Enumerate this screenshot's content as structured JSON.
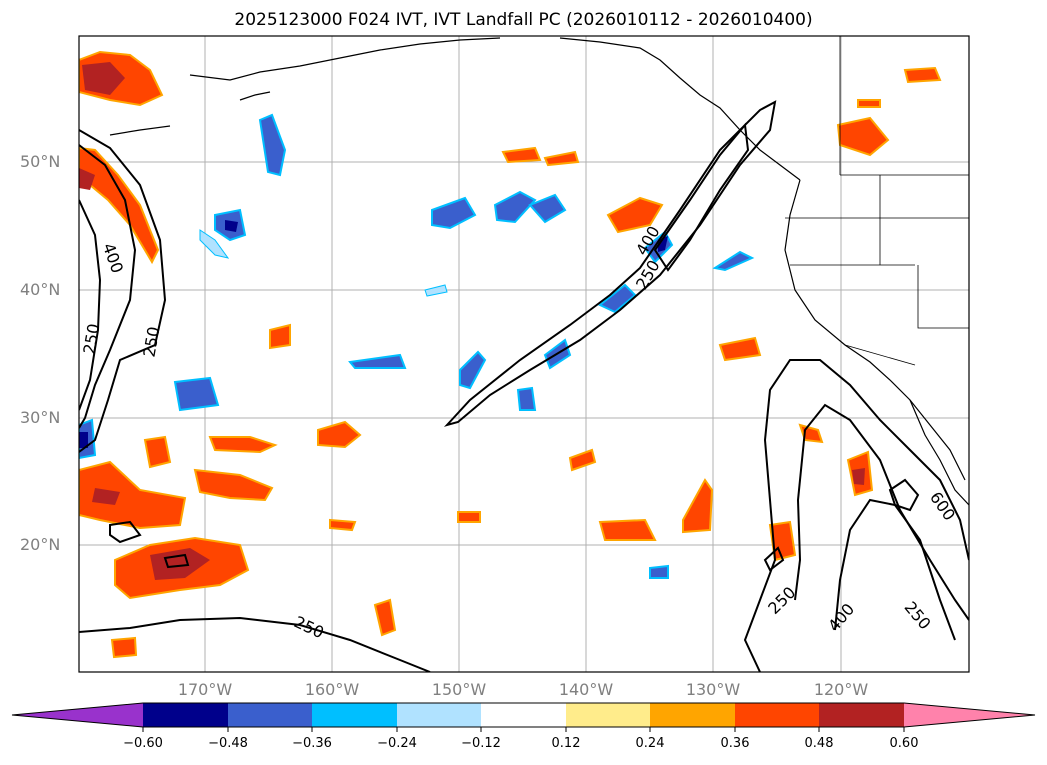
{
  "title": "2025123000 F024 IVT, IVT Landfall PC (2026010112 - 2026010400)",
  "map": {
    "lat_labels": [
      "50°N",
      "40°N",
      "30°N",
      "20°N"
    ],
    "lon_labels": [
      "170°W",
      "160°W",
      "150°W",
      "140°W",
      "130°W",
      "120°W"
    ],
    "contour_labels": [
      "400",
      "250",
      "250",
      "400",
      "250",
      "600",
      "250",
      "400",
      "250",
      "250"
    ]
  },
  "colorbar": {
    "ticks": [
      "−0.60",
      "−0.48",
      "−0.36",
      "−0.24",
      "−0.12",
      "0.12",
      "0.24",
      "0.36",
      "0.48",
      "0.60"
    ],
    "colors": [
      "#9932cc",
      "#00008b",
      "#3a5fcd",
      "#00bfff",
      "#b0e2ff",
      "#ffffff",
      "#ffec8b",
      "#ffa500",
      "#ff4500",
      "#b22222",
      "#ff82ab"
    ]
  }
}
